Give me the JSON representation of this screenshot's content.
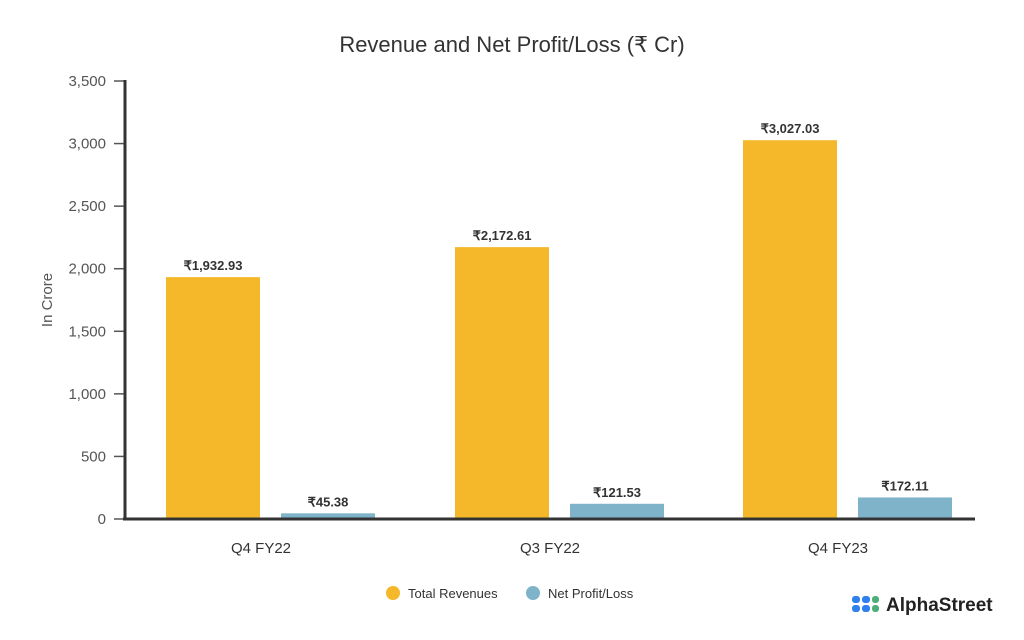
{
  "chart_data": {
    "type": "bar",
    "title": "Revenue and Net Profit/Loss (₹ Cr)",
    "xlabel": "",
    "ylabel": "In Crore",
    "ylim": [
      0,
      3500
    ],
    "yticks": [
      0,
      500,
      1000,
      1500,
      2000,
      2500,
      3000,
      3500
    ],
    "ytick_labels": [
      "0",
      "500",
      "1,000",
      "1,500",
      "2,000",
      "2,500",
      "3,000",
      "3,500"
    ],
    "categories": [
      "Q4 FY22",
      "Q3 FY22",
      "Q4 FY23"
    ],
    "series": [
      {
        "name": "Total Revenues",
        "color": "#F5B82A",
        "values": [
          1932.93,
          2172.61,
          3027.03
        ],
        "labels": [
          "₹1,932.93",
          "₹2,172.61",
          "₹3,027.03"
        ]
      },
      {
        "name": "Net Profit/Loss",
        "color": "#7FB3C9",
        "values": [
          45.38,
          121.53,
          172.11
        ],
        "labels": [
          "₹45.38",
          "₹121.53",
          "₹172.11"
        ]
      }
    ],
    "grid": false,
    "legend_position": "bottom-center"
  },
  "brand": {
    "name": "AlphaStreet"
  }
}
